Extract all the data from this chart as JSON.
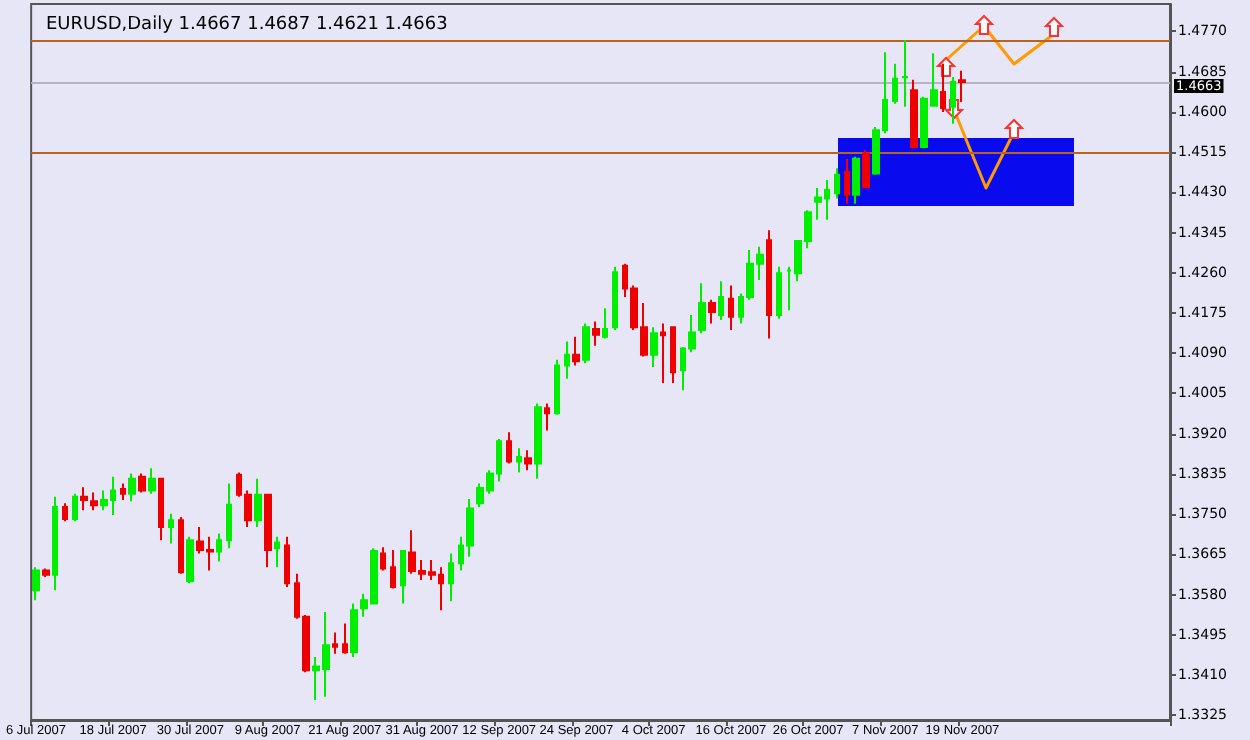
{
  "chart_data": {
    "type": "candlestick",
    "title": "EURUSD,Daily 1.4667 1.4687 1.4621 1.4663",
    "categories": [
      "6 Jul 2007",
      null,
      null,
      null,
      null,
      null,
      null,
      null,
      "18 Jul 2007",
      null,
      null,
      null,
      null,
      null,
      null,
      null,
      "30 Jul 2007",
      null,
      null,
      null,
      null,
      null,
      null,
      null,
      "9 Aug 2007",
      null,
      null,
      null,
      null,
      null,
      null,
      null,
      "21 Aug 2007",
      null,
      null,
      null,
      null,
      null,
      null,
      null,
      "31 Aug 2007",
      null,
      null,
      null,
      null,
      null,
      null,
      null,
      "12 Sep 2007",
      null,
      null,
      null,
      null,
      null,
      null,
      null,
      "24 Sep 2007",
      null,
      null,
      null,
      null,
      null,
      null,
      null,
      "4 Oct 2007",
      null,
      null,
      null,
      null,
      null,
      null,
      null,
      "16 Oct 2007",
      null,
      null,
      null,
      null,
      null,
      null,
      null,
      "26 Oct 2007",
      null,
      null,
      null,
      null,
      null,
      null,
      null,
      "7 Nov 2007",
      null,
      null,
      null,
      null,
      null,
      null,
      null,
      "19 Nov 2007",
      null,
      null,
      null,
      null,
      null,
      null,
      null,
      null,
      null,
      null,
      null,
      null,
      null,
      null,
      null,
      null,
      null,
      null,
      null,
      null,
      null
    ],
    "ohlc": [
      [
        1.3589,
        1.3638,
        1.3568,
        1.3631
      ],
      [
        1.3631,
        1.3635,
        1.3617,
        1.3622
      ],
      [
        1.3622,
        1.3787,
        1.3589,
        1.3765
      ],
      [
        1.3765,
        1.3773,
        1.3735,
        1.374
      ],
      [
        1.374,
        1.3793,
        1.3735,
        1.3787
      ],
      [
        1.3787,
        1.3807,
        1.3758,
        1.378
      ],
      [
        1.3777,
        1.3796,
        1.3758,
        1.3769
      ],
      [
        1.3769,
        1.38,
        1.3758,
        1.378
      ],
      [
        1.378,
        1.3829,
        1.3748,
        1.38
      ],
      [
        1.3803,
        1.3815,
        1.378,
        1.3793
      ],
      [
        1.3793,
        1.3836,
        1.3777,
        1.3825
      ],
      [
        1.3829,
        1.3836,
        1.3796,
        1.38
      ],
      [
        1.38,
        1.3847,
        1.3793,
        1.3825
      ],
      [
        1.3825,
        1.3825,
        1.3695,
        1.3723
      ],
      [
        1.3723,
        1.3751,
        1.3688,
        1.3737
      ],
      [
        1.3737,
        1.3744,
        1.3624,
        1.3627
      ],
      [
        1.3608,
        1.3702,
        1.3604,
        1.3695
      ],
      [
        1.3692,
        1.3723,
        1.3667,
        1.3674
      ],
      [
        1.3674,
        1.3702,
        1.3631,
        1.3671
      ],
      [
        1.3671,
        1.3709,
        1.365,
        1.3695
      ],
      [
        1.3695,
        1.3815,
        1.3678,
        1.377
      ],
      [
        1.3833,
        1.3838,
        1.3787,
        1.3791
      ],
      [
        1.3791,
        1.38,
        1.3723,
        1.3737
      ],
      [
        1.3737,
        1.3825,
        1.3723,
        1.3791
      ],
      [
        1.3791,
        1.3793,
        1.3638,
        1.3674
      ],
      [
        1.3678,
        1.3702,
        1.3638,
        1.369
      ],
      [
        1.3684,
        1.3702,
        1.3596,
        1.3604
      ],
      [
        1.3604,
        1.3624,
        1.3529,
        1.3533
      ],
      [
        1.3533,
        1.3537,
        1.3416,
        1.342
      ],
      [
        1.342,
        1.3448,
        1.3357,
        1.3428
      ],
      [
        1.3423,
        1.3543,
        1.3364,
        1.3473
      ],
      [
        1.3475,
        1.35,
        1.3455,
        1.347
      ],
      [
        1.3475,
        1.3519,
        1.3455,
        1.3458
      ],
      [
        1.3458,
        1.3561,
        1.3448,
        1.3547
      ],
      [
        1.3551,
        1.3582,
        1.3533,
        1.3568
      ],
      [
        1.3561,
        1.3678,
        1.3561,
        1.3672
      ],
      [
        1.3667,
        1.368,
        1.3631,
        1.3635
      ],
      [
        1.3638,
        1.3674,
        1.3593,
        1.3596
      ],
      [
        1.36,
        1.3674,
        1.3561,
        1.3672
      ],
      [
        1.3669,
        1.3716,
        1.3624,
        1.363
      ],
      [
        1.363,
        1.3653,
        1.3611,
        1.3624
      ],
      [
        1.3627,
        1.3653,
        1.3611,
        1.3622
      ],
      [
        1.3622,
        1.3638,
        1.3547,
        1.3604
      ],
      [
        1.3604,
        1.3667,
        1.3566,
        1.3646
      ],
      [
        1.3646,
        1.3702,
        1.3631,
        1.3684
      ],
      [
        1.3684,
        1.3782,
        1.366,
        1.3762
      ],
      [
        1.3773,
        1.3815,
        1.3765,
        1.3805
      ],
      [
        1.38,
        1.3843,
        1.3793,
        1.3836
      ],
      [
        1.3836,
        1.3909,
        1.3819,
        1.3904
      ],
      [
        1.3904,
        1.3923,
        1.3857,
        1.3861
      ],
      [
        1.3861,
        1.3889,
        1.3838,
        1.3871
      ],
      [
        1.3868,
        1.3885,
        1.3843,
        1.3857
      ],
      [
        1.3857,
        1.3984,
        1.3825,
        1.3976
      ],
      [
        1.3974,
        1.3984,
        1.3927,
        1.3963
      ],
      [
        1.3963,
        1.4076,
        1.396,
        1.4064
      ],
      [
        1.4064,
        1.4115,
        1.4036,
        1.4087
      ],
      [
        1.4087,
        1.4125,
        1.4064,
        1.4073
      ],
      [
        1.4076,
        1.4153,
        1.4069,
        1.4145
      ],
      [
        1.4141,
        1.4157,
        1.4106,
        1.4129
      ],
      [
        1.4125,
        1.4185,
        1.4121,
        1.4141
      ],
      [
        1.4145,
        1.4273,
        1.4139,
        1.4261
      ],
      [
        1.4275,
        1.4279,
        1.4209,
        1.4227
      ],
      [
        1.4227,
        1.4233,
        1.4139,
        1.4145
      ],
      [
        1.4145,
        1.4196,
        1.4083,
        1.4087
      ],
      [
        1.4087,
        1.4145,
        1.4061,
        1.4132
      ],
      [
        1.4134,
        1.4153,
        1.4027,
        1.4128
      ],
      [
        1.4145,
        1.4145,
        1.4027,
        1.405
      ],
      [
        1.4054,
        1.4103,
        1.4012,
        1.41
      ],
      [
        1.41,
        1.4171,
        1.4092,
        1.4134
      ],
      [
        1.4139,
        1.4238,
        1.4132,
        1.4196
      ],
      [
        1.4196,
        1.4203,
        1.4153,
        1.4177
      ],
      [
        1.4171,
        1.4242,
        1.416,
        1.4209
      ],
      [
        1.4205,
        1.4233,
        1.4139,
        1.4167
      ],
      [
        1.4167,
        1.4216,
        1.4153,
        1.4209
      ],
      [
        1.4209,
        1.4308,
        1.4203,
        1.4279
      ],
      [
        1.4279,
        1.4315,
        1.4245,
        1.4298
      ],
      [
        1.4329,
        1.435,
        1.4121,
        1.4171
      ],
      [
        1.4171,
        1.4273,
        1.4163,
        1.4259
      ],
      [
        1.4265,
        1.4273,
        1.4181,
        1.4265
      ],
      [
        1.4259,
        1.4329,
        1.4242,
        1.4327
      ],
      [
        1.4327,
        1.4392,
        1.4312,
        1.4388
      ],
      [
        1.441,
        1.4439,
        1.4372,
        1.4419
      ],
      [
        1.4417,
        1.4456,
        1.4372,
        1.4435
      ],
      [
        1.4428,
        1.4481,
        1.4417,
        1.4467
      ],
      [
        1.4473,
        1.4501,
        1.4406,
        1.4425
      ],
      [
        1.4425,
        1.4505,
        1.4406,
        1.4501
      ],
      [
        1.4512,
        1.4519,
        1.4439,
        1.4441
      ],
      [
        1.447,
        1.4568,
        1.4467,
        1.4561
      ],
      [
        1.4561,
        1.4726,
        1.4555,
        1.4625
      ],
      [
        1.4623,
        1.4702,
        1.4617,
        1.467
      ],
      [
        1.4673,
        1.4752,
        1.4611,
        1.4674
      ],
      [
        1.4646,
        1.4668,
        1.4523,
        1.4526
      ],
      [
        1.4526,
        1.4632,
        1.4523,
        1.4628
      ],
      [
        1.4613,
        1.4724,
        1.4611,
        1.4646
      ],
      [
        1.4642,
        1.4702,
        1.46,
        1.4608
      ],
      [
        1.4611,
        1.4674,
        1.4575,
        1.4663
      ],
      [
        1.4667,
        1.4687,
        1.4621,
        1.4663
      ],
      null,
      null,
      null,
      null,
      null,
      null,
      null,
      null,
      null,
      null,
      null,
      null,
      null,
      null,
      null,
      null,
      null,
      null,
      null,
      null,
      null
    ],
    "ylim": [
      1.3315,
      1.4828
    ],
    "yticks": [
      {
        "value": 1.3325,
        "label": "1.3325"
      },
      {
        "value": 1.341,
        "label": "1.3410"
      },
      {
        "value": 1.3495,
        "label": "1.3495"
      },
      {
        "value": 1.358,
        "label": "1.3580"
      },
      {
        "value": 1.3665,
        "label": "1.3665"
      },
      {
        "value": 1.375,
        "label": "1.3750"
      },
      {
        "value": 1.3835,
        "label": "1.3835"
      },
      {
        "value": 1.392,
        "label": "1.3920"
      },
      {
        "value": 1.4005,
        "label": "1.4005"
      },
      {
        "value": 1.409,
        "label": "1.4090"
      },
      {
        "value": 1.4175,
        "label": "1.4175"
      },
      {
        "value": 1.426,
        "label": "1.4260"
      },
      {
        "value": 1.4345,
        "label": "1.4345"
      },
      {
        "value": 1.443,
        "label": "1.4430"
      },
      {
        "value": 1.4515,
        "label": "1.4515"
      },
      {
        "value": 1.46,
        "label": "1.4600"
      },
      {
        "value": 1.4685,
        "label": "1.4685"
      },
      {
        "value": 1.477,
        "label": "1.4770"
      }
    ],
    "ref_lines": [
      {
        "axis": "y",
        "value": 1.4752,
        "color": "#b5651d"
      },
      {
        "axis": "y",
        "value": 1.4515,
        "color": "#b5651d"
      },
      {
        "axis": "y",
        "value": 1.4663,
        "label": "1.4663",
        "color": "#b4b4c4"
      }
    ]
  }
}
